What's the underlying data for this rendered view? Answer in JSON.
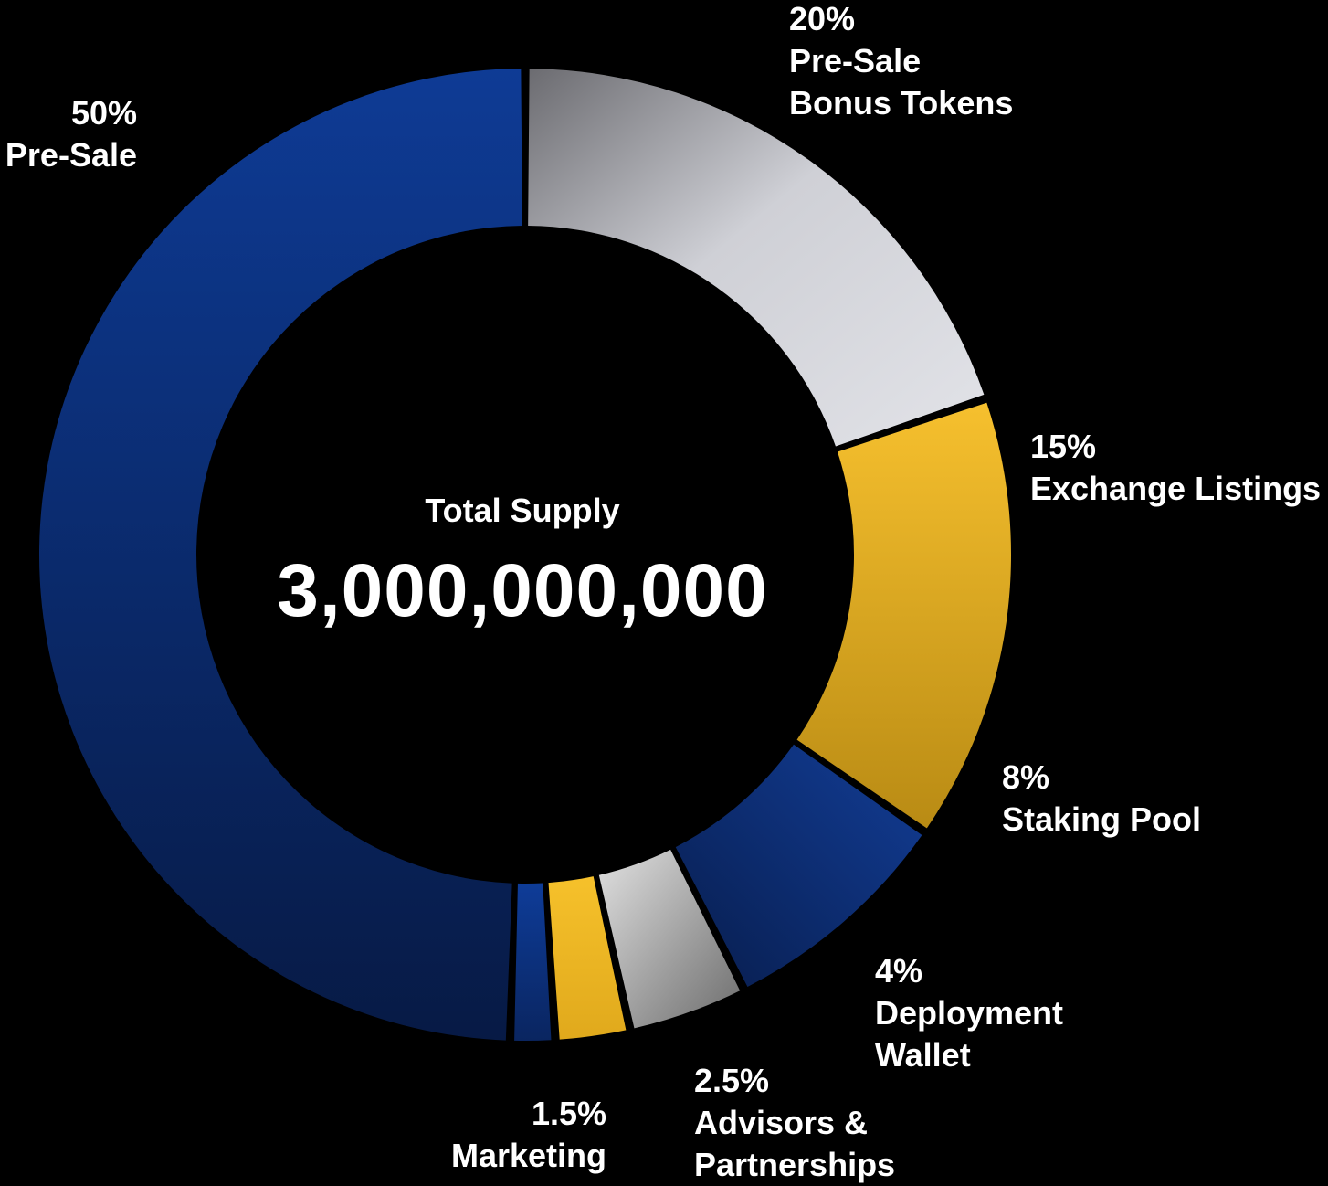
{
  "chart_data": {
    "type": "pie",
    "center": {
      "title": "Total Supply",
      "value": "3,000,000,000"
    },
    "series": [
      {
        "name": "Pre-Sale",
        "percent_label": "50%",
        "value": 50,
        "color": "#0d3a8f"
      },
      {
        "name": "Pre-Sale Bonus Tokens",
        "percent_label": "20%",
        "value": 20,
        "color": "#c8c9cf"
      },
      {
        "name": "Exchange Listings",
        "percent_label": "15%",
        "value": 15,
        "color": "#f2b92b"
      },
      {
        "name": "Staking Pool",
        "percent_label": "8%",
        "value": 8,
        "color": "#0d3a8f"
      },
      {
        "name": "Deployment Wallet",
        "percent_label": "4%",
        "value": 4,
        "color": "#cfcfcf"
      },
      {
        "name": "Advisors & Partnerships",
        "percent_label": "2.5%",
        "value": 2.5,
        "color": "#f4bd2a"
      },
      {
        "name": "Marketing",
        "percent_label": "1.5%",
        "value": 1.5,
        "color": "#0d3a8f"
      }
    ]
  },
  "labels": {
    "presale": {
      "line1": "50%",
      "line2": "Pre-Sale"
    },
    "bonus": {
      "line1": "20%",
      "line2": "Pre-Sale",
      "line3": "Bonus Tokens"
    },
    "exchange": {
      "line1": "15%",
      "line2": "Exchange Listings"
    },
    "staking": {
      "line1": "8%",
      "line2": "Staking Pool"
    },
    "deployment": {
      "line1": "4%",
      "line2": "Deployment",
      "line3": "Wallet"
    },
    "advisors": {
      "line1": "2.5%",
      "line2": "Advisors &",
      "line3": "Partnerships"
    },
    "marketing": {
      "line1": "1.5%",
      "line2": "Marketing"
    }
  }
}
